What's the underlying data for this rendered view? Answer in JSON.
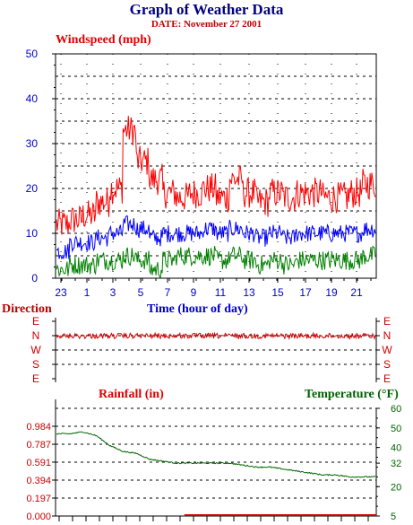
{
  "header": {
    "title": "Graph of Weather Data",
    "date": "DATE: November 27 2001"
  },
  "colors": {
    "windspeed_high": "#ff0000",
    "windspeed_avg": "#0000ff",
    "windspeed_low": "#008000",
    "direction": "#cc0000",
    "rainfall": "#cc0000",
    "temperature": "#006400",
    "axis_blue": "#0000cc"
  },
  "chart_data": [
    {
      "type": "line",
      "name": "windspeed",
      "ylabel": "Windspeed (mph)",
      "xlabel": "Time (hour of day)",
      "ylim": [
        0,
        50
      ],
      "yticks": [
        "0",
        "10",
        "20",
        "30",
        "40",
        "50"
      ],
      "xlim": [
        22.5,
        23.2
      ],
      "xticks": [
        "23",
        "1",
        "3",
        "5",
        "7",
        "9",
        "11",
        "13",
        "15",
        "17",
        "19",
        "21"
      ],
      "grid": true,
      "series": [
        {
          "values_hourly_max": [
            12,
            13,
            14,
            17,
            20,
            33,
            26,
            22,
            19,
            18,
            19,
            20,
            18,
            22,
            19,
            17,
            19,
            18,
            19,
            19,
            18,
            18,
            19,
            21
          ]
        },
        {
          "values_hourly_avg": [
            6,
            8,
            8,
            9,
            10,
            12,
            11,
            9,
            10,
            10,
            10,
            11,
            10,
            11,
            10,
            9,
            10,
            9,
            10,
            10,
            10,
            10,
            10,
            11
          ]
        },
        {
          "values_hourly_min": [
            2,
            3,
            3,
            4,
            4,
            5,
            4,
            2,
            4,
            5,
            5,
            5,
            4,
            5,
            4,
            3,
            4,
            3,
            4,
            4,
            4,
            4,
            4,
            5
          ]
        }
      ]
    },
    {
      "type": "line",
      "name": "direction",
      "ylabel": "Direction",
      "ycategories": [
        "E",
        "N",
        "W",
        "S",
        "E"
      ],
      "values_hourly": [
        "N",
        "N",
        "N",
        "N",
        "N",
        "N",
        "N",
        "N",
        "N",
        "N",
        "N",
        "N",
        "N",
        "N",
        "N",
        "N",
        "N",
        "N",
        "N",
        "N",
        "N",
        "N",
        "N",
        "N"
      ]
    },
    {
      "type": "line",
      "name": "rainfall_temperature",
      "series": [
        {
          "name": "Rainfall (in)",
          "axis": "left",
          "ylim": [
            0,
            1.181
          ],
          "yticks": [
            "0.000",
            "0.197",
            "0.394",
            "0.591",
            "0.787",
            "0.984"
          ],
          "values_hourly": [
            0,
            0,
            0,
            0,
            0,
            0,
            0,
            0,
            0,
            0,
            0,
            0,
            0,
            0,
            0,
            0,
            0,
            0,
            0,
            0,
            0,
            0,
            0,
            0
          ]
        },
        {
          "name": "Temperature (°F)",
          "axis": "right",
          "ylim": [
            5,
            60
          ],
          "yticks": [
            "5",
            "12",
            "20",
            "28",
            "36",
            "44",
            "52",
            "60"
          ],
          "yticks_shown": [
            "5",
            "20",
            "32",
            "40",
            "50",
            "60"
          ],
          "values_hourly": [
            47,
            47,
            48,
            46,
            41,
            38,
            37,
            34,
            33,
            32,
            32,
            32,
            32,
            32,
            31,
            30,
            30,
            29,
            28,
            27,
            26,
            26,
            25,
            25
          ]
        }
      ]
    }
  ]
}
